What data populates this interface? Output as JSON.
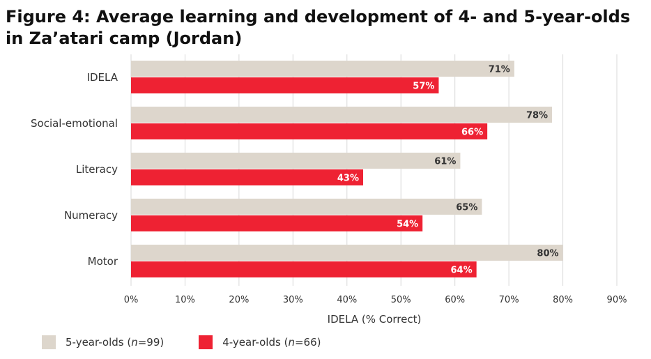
{
  "title_line1": "Figure 4: Average learning and development of 4- and 5-year-olds",
  "title_line2": "in Za’atari camp (Jordan)",
  "legend": [
    {
      "prefix": "5-year-olds (",
      "n": "n",
      "suffix": "=99)",
      "color": "#ddd6cc"
    },
    {
      "prefix": "4-year-olds (",
      "n": "n",
      "suffix": "=66)",
      "color": "#ee2233"
    }
  ],
  "chart_data": {
    "type": "bar",
    "orientation": "horizontal",
    "categories": [
      "IDELA",
      "Social-emotional",
      "Literacy",
      "Numeracy",
      "Motor"
    ],
    "series": [
      {
        "name": "5-year-olds (n=99)",
        "values": [
          71,
          78,
          61,
          65,
          80
        ],
        "labels": [
          "71%",
          "78%",
          "61%",
          "65%",
          "80%"
        ],
        "color": "#ddd6cc"
      },
      {
        "name": "4-year-olds (n=66)",
        "values": [
          57,
          66,
          43,
          54,
          64
        ],
        "labels": [
          "57%",
          "66%",
          "43%",
          "54%",
          "64%"
        ],
        "color": "#ee2233"
      }
    ],
    "xlabel": "IDELA (% Correct)",
    "ylabel": "",
    "xlim": [
      0,
      90
    ],
    "xticks": [
      0,
      10,
      20,
      30,
      40,
      50,
      60,
      70,
      80,
      90
    ],
    "xtick_labels": [
      "0%",
      "10%",
      "20%",
      "30%",
      "40%",
      "50%",
      "60%",
      "70%",
      "80%",
      "90%"
    ],
    "grid": true,
    "legend_position": "bottom-left"
  }
}
